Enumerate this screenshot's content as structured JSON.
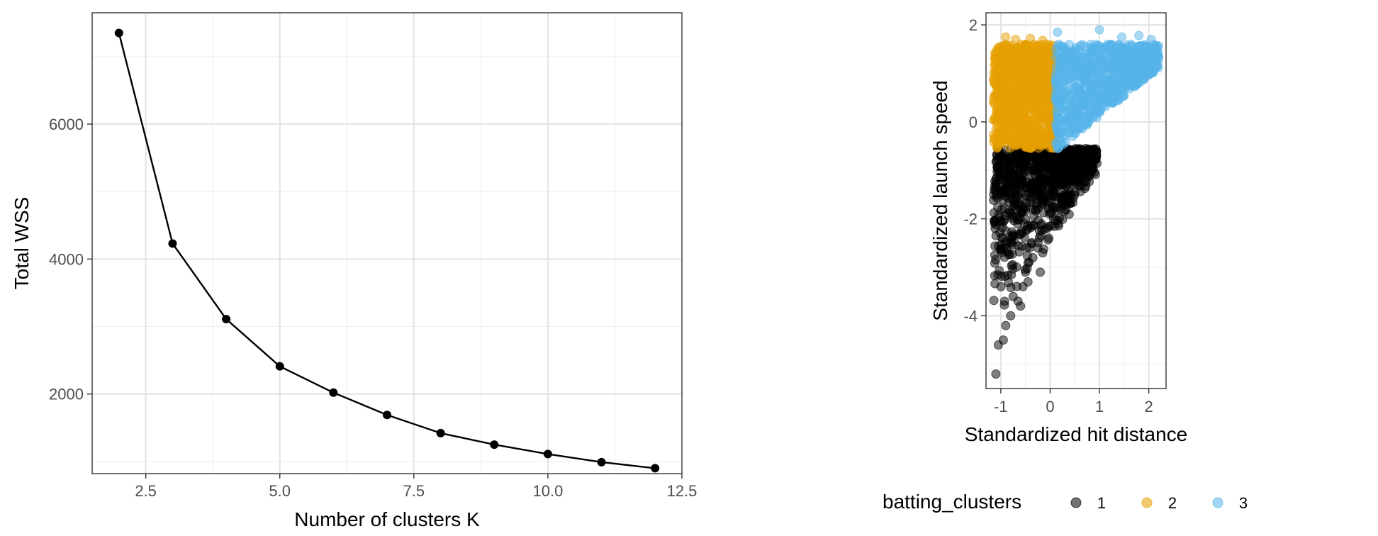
{
  "chart_data": [
    {
      "type": "line",
      "title": "",
      "xlabel": "Number of clusters K",
      "ylabel": "Total WSS",
      "xlim": [
        1.5,
        12.5
      ],
      "ylim": [
        820,
        7650
      ],
      "x_ticks": [
        2.5,
        5.0,
        7.5,
        10.0,
        12.5
      ],
      "x_tick_labels": [
        "2.5",
        "5.0",
        "7.5",
        "10.0",
        "12.5"
      ],
      "y_ticks": [
        2000,
        4000,
        6000
      ],
      "y_tick_labels": [
        "2000",
        "4000",
        "6000"
      ],
      "grid": true,
      "x": [
        2,
        3,
        4,
        5,
        6,
        7,
        8,
        9,
        10,
        11,
        12
      ],
      "y": [
        7350,
        4230,
        3110,
        2410,
        2020,
        1690,
        1420,
        1250,
        1110,
        990,
        900
      ],
      "color": "#000000"
    },
    {
      "type": "scatter",
      "title": "",
      "xlabel": "Standardized hit distance",
      "ylabel": "Standardized launch speed",
      "xlim": [
        -1.3,
        2.35
      ],
      "ylim": [
        -5.5,
        2.25
      ],
      "x_ticks": [
        -1,
        0,
        1,
        2
      ],
      "x_tick_labels": [
        "-1",
        "0",
        "1",
        "2"
      ],
      "y_ticks": [
        -4,
        -2,
        0,
        2
      ],
      "y_tick_labels": [
        "-4",
        "-2",
        "0",
        "2"
      ],
      "grid": true,
      "legend": {
        "title": "batting_clusters",
        "position": "bottom",
        "entries": [
          {
            "label": "1",
            "color": "#000000"
          },
          {
            "label": "2",
            "color": "#E69F00"
          },
          {
            "label": "3",
            "color": "#56B4E9"
          }
        ]
      },
      "clusters": [
        {
          "name": "1",
          "color": "#000000",
          "dense_region": {
            "x": [
              -1.15,
              0.95
            ],
            "y_top": -0.55,
            "y_bottom_at_xmin": -4.3,
            "y_bottom_at_xmax": -1.1
          },
          "outliers": [
            [
              -1.1,
              -5.2
            ],
            [
              -1.05,
              -4.6
            ],
            [
              -0.95,
              -4.5
            ],
            [
              -0.8,
              -4.0
            ],
            [
              -0.65,
              -3.7
            ],
            [
              -0.55,
              -3.4
            ],
            [
              -0.5,
              -3.1
            ],
            [
              -0.35,
              -2.8
            ],
            [
              -0.25,
              -2.6
            ],
            [
              -0.15,
              -2.7
            ],
            [
              -0.2,
              -3.1
            ],
            [
              -0.6,
              -3.8
            ],
            [
              -0.9,
              -4.2
            ],
            [
              -0.75,
              -3.6
            ],
            [
              -0.45,
              -3.3
            ]
          ]
        },
        {
          "name": "2",
          "color": "#E69F00",
          "dense_region": {
            "x": [
              -1.15,
              0.1
            ],
            "y": [
              -0.55,
              1.6
            ]
          },
          "outliers": [
            [
              -0.9,
              1.75
            ],
            [
              -0.7,
              1.7
            ],
            [
              -0.4,
              1.72
            ],
            [
              -0.15,
              1.68
            ]
          ]
        },
        {
          "name": "3",
          "color": "#56B4E9",
          "dense_region": {
            "x": [
              0.1,
              2.2
            ],
            "y_top": 1.6,
            "y_bottom_at_xmin": -0.6,
            "y_bottom_at_xmax": 1.1
          },
          "outliers": [
            [
              0.15,
              1.85
            ],
            [
              1.0,
              1.9
            ],
            [
              1.45,
              1.75
            ],
            [
              1.8,
              1.78
            ],
            [
              2.05,
              1.7
            ],
            [
              2.2,
              1.3
            ],
            [
              2.15,
              1.55
            ]
          ]
        }
      ]
    }
  ]
}
